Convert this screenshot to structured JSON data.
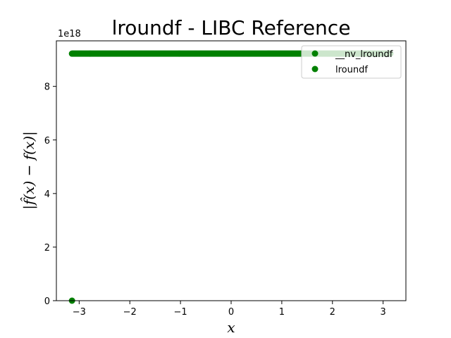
{
  "chart_data": {
    "type": "scatter",
    "title": "lroundf - LIBC Reference",
    "xlabel": "x",
    "ylabel": "|f̂(x) − f(x)|",
    "y_offset_label": "1e18",
    "xlim": [
      -3.45,
      3.45
    ],
    "ylim": [
      0,
      9.7
    ],
    "y_scale_note": "values in units of 1e18",
    "xticks": [
      -3,
      -2,
      -1,
      0,
      1,
      2,
      3
    ],
    "xtick_labels": [
      "−3",
      "−2",
      "−1",
      "0",
      "1",
      "2",
      "3"
    ],
    "yticks": [
      0,
      2,
      4,
      6,
      8
    ],
    "ytick_labels": [
      "0",
      "2",
      "4",
      "6",
      "8"
    ],
    "grid": false,
    "legend_position": "top-right",
    "series": [
      {
        "name": "__nv_lroundf",
        "color": "#008000",
        "marker": "circle",
        "points": [
          [
            -3.14159,
            0.0
          ]
        ]
      },
      {
        "name": "lroundf",
        "color": "#008000",
        "marker": "circle",
        "x_range": [
          -3.14159,
          3.14159
        ],
        "y_constant": 9.223372
      }
    ]
  }
}
